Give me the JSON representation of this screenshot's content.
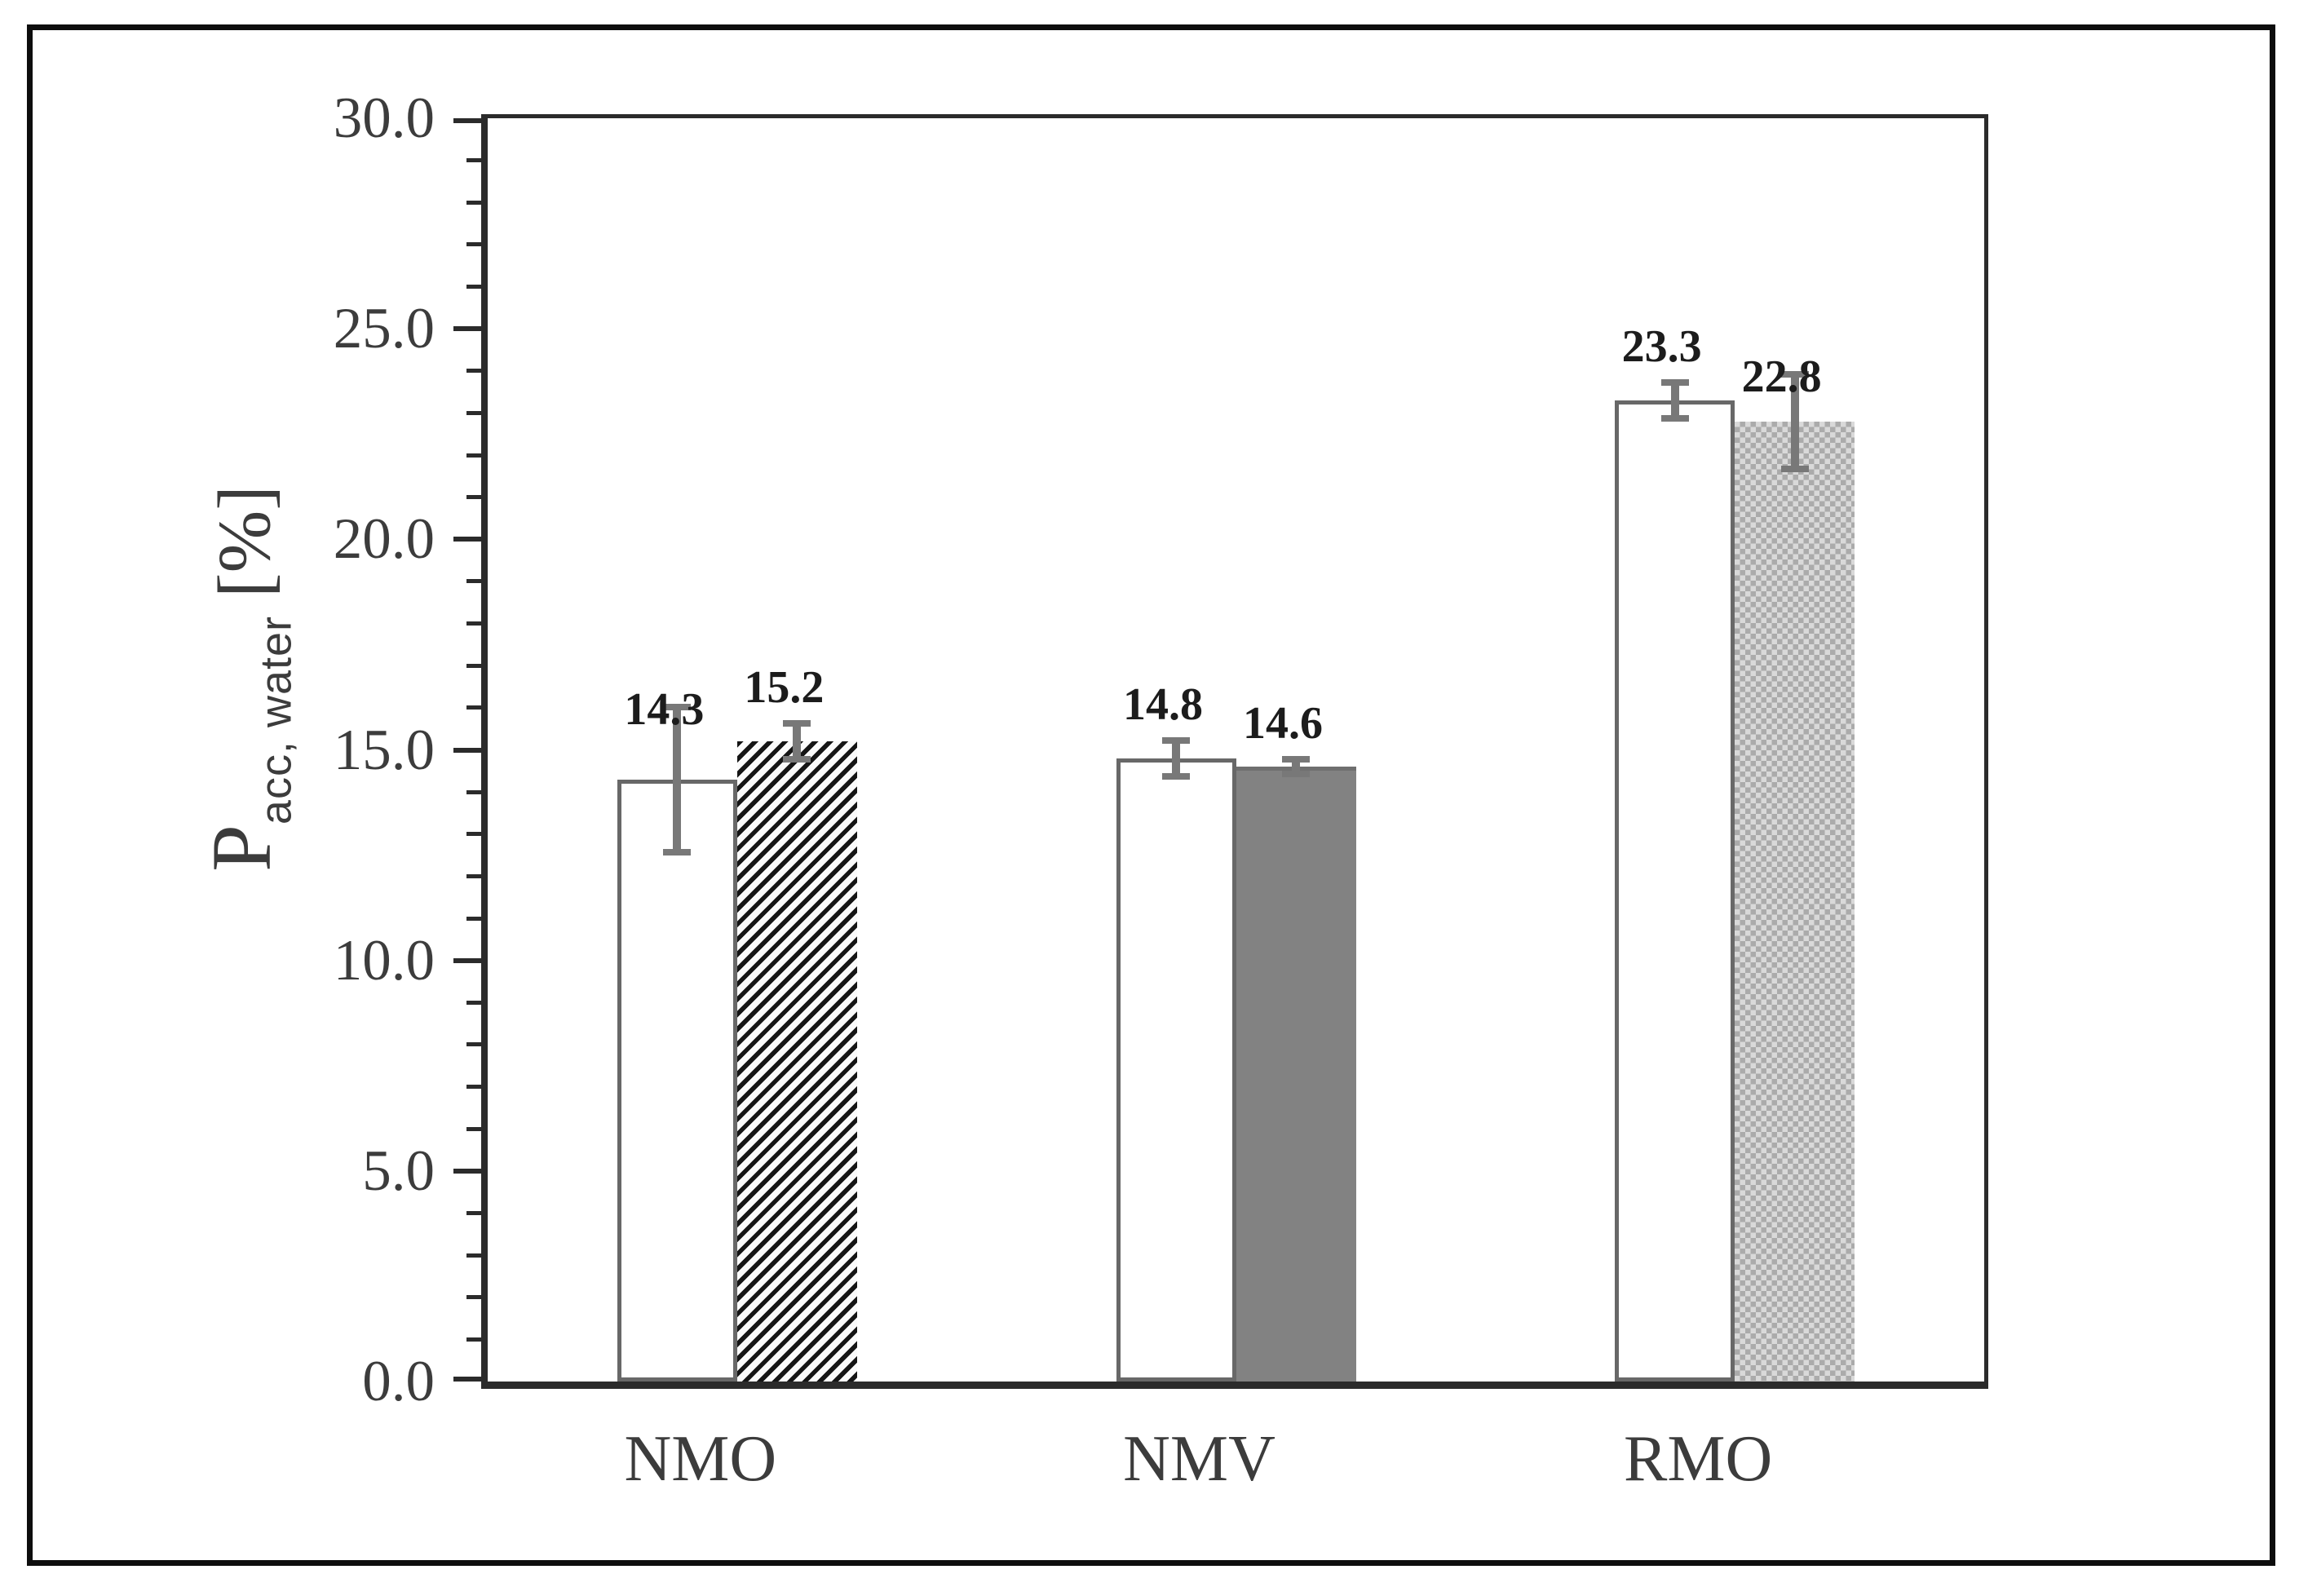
{
  "chart_data": {
    "type": "bar",
    "title": "",
    "xlabel": "",
    "ylabel": "Pacc, water [%]",
    "ylabel_parts": {
      "symbol": "P",
      "subscript": "acc, water",
      "unit": "[%]"
    },
    "categories": [
      "NMO",
      "NMV",
      "RMO"
    ],
    "series": [
      {
        "values": [
          14.3,
          14.8,
          23.3
        ],
        "errors": [
          1.8,
          0.5,
          0.5
        ],
        "labels": [
          "14.3",
          "14.8",
          "23.3"
        ],
        "fills": [
          "white",
          "white",
          "white"
        ]
      },
      {
        "values": [
          15.2,
          14.6,
          22.8
        ],
        "errors": [
          0.5,
          0.25,
          1.2
        ],
        "labels": [
          "15.2",
          "14.6",
          "22.8"
        ],
        "fills": [
          "diagonal-hatch",
          "solid-gray",
          "dot-checker"
        ]
      }
    ],
    "ylim": [
      0,
      30
    ],
    "ytick_step": 5,
    "minor_tick_step": 1,
    "ytick_labels": [
      "0.0",
      "5.0",
      "10.0",
      "15.0",
      "20.0",
      "25.0",
      "30.0"
    ],
    "grid": false,
    "legend": null,
    "colors": {
      "figure_border": "#0d0d0d",
      "axis": "#2b2b2b",
      "bar_outline": "#686868",
      "solid_gray": "#828282",
      "hatch": "#151515",
      "checker_dark": "#ababab",
      "checker_light": "#d9d9d9",
      "error_bar": "#787878",
      "tick_text": "#3c3c3c",
      "value_text": "#1c1c1c"
    }
  }
}
